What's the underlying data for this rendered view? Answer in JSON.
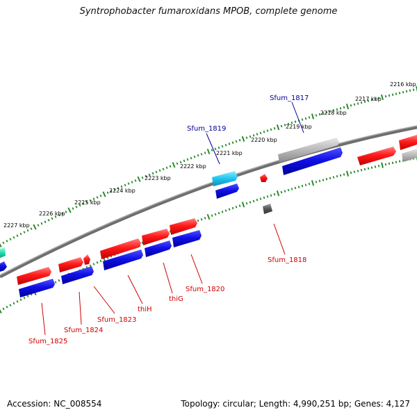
{
  "title": "Syntrophobacter fumaroxidans MPOB, complete genome",
  "footer": {
    "accession": "Accession: NC_008554",
    "summary": "Topology: circular; Length: 4,990,251 bp; Genes: 4,127"
  },
  "ruler": [
    "2216 kbp",
    "2217 kbp",
    "2218 kbp",
    "2219 kbp",
    "2220 kbp",
    "2221 kbp",
    "2222 kbp",
    "2223 kbp",
    "2224 kbp",
    "2225 kbp",
    "2226 kbp",
    "2227 kbp"
  ],
  "gene_labels": {
    "sfum_1817": "Sfum_1817",
    "sfum_1819": "Sfum_1819",
    "sfum_1818": "Sfum_1818",
    "sfum_1820": "Sfum_1820",
    "thiG": "thiG",
    "thiH": "thiH",
    "sfum_1823": "Sfum_1823",
    "sfum_1824": "Sfum_1824",
    "sfum_1825": "Sfum_1825"
  },
  "colors": {
    "red": "#ff1a1a",
    "blue": "#0a0ae0",
    "cyan": "#22c8f0",
    "gray": "#b4b4b4",
    "darkgray": "#555555",
    "teal": "#20e0b0",
    "tick_green": "#2a8a2a",
    "backbone": "#777777",
    "label_blue": "#000099",
    "label_red": "#cc0000"
  }
}
